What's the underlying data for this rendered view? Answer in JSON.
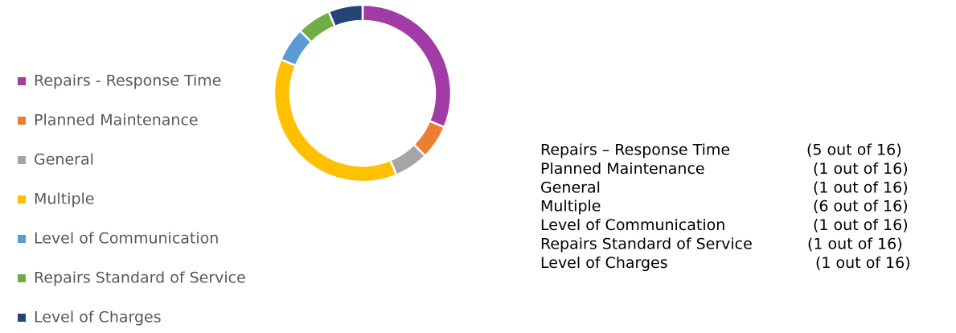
{
  "chart_data": {
    "type": "donut",
    "categories": [
      "Repairs - Response Time",
      "Planned Maintenance",
      "General",
      "Multiple",
      "Level of Communication",
      "Repairs Standard of Service",
      "Level of Charges"
    ],
    "values": [
      5,
      1,
      1,
      6,
      1,
      1,
      1
    ],
    "colors": [
      "#a13ba6",
      "#ed7d31",
      "#a5a5a5",
      "#ffc000",
      "#5b9bd5",
      "#70ad47",
      "#264478"
    ],
    "legend": "left"
  },
  "table": {
    "rows": [
      [
        "Repairs – Response Time",
        "(5 out of 16)"
      ],
      [
        "Planned Maintenance",
        "(1 out of 16)"
      ],
      [
        "General",
        "(1 out of 16)"
      ],
      [
        "Multiple",
        "(6 out of 16)"
      ],
      [
        "Level of Communication",
        "(1 out of 16)"
      ],
      [
        "Repairs Standard of Service",
        "(1 out of 16)"
      ],
      [
        "Level of Charges",
        "(1 out of 16)"
      ]
    ]
  }
}
